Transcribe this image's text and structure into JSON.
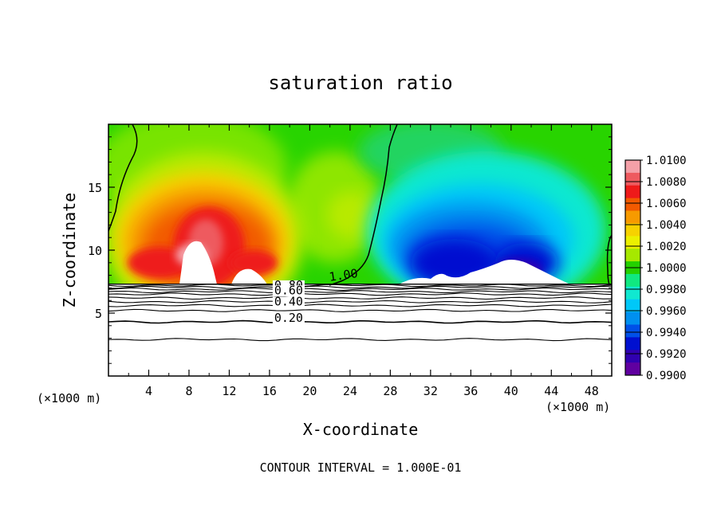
{
  "chart_data": {
    "type": "heatmap",
    "title": "saturation ratio",
    "xlabel": "X-coordinate",
    "ylabel": "Z-coordinate",
    "x_unit_left": "(×1000 m)",
    "x_unit_right": "(×1000 m)",
    "footer": "CONTOUR INTERVAL = 1.000E-01",
    "xlim": [
      0,
      50
    ],
    "ylim": [
      0,
      20
    ],
    "x_ticks": [
      4,
      8,
      12,
      16,
      20,
      24,
      28,
      32,
      36,
      40,
      44,
      48
    ],
    "x_tick_labels": [
      "4",
      "8",
      "12",
      "16",
      "20",
      "24",
      "28",
      "32",
      "36",
      "40",
      "44",
      "48"
    ],
    "y_ticks": [
      5,
      10,
      15
    ],
    "y_tick_labels": [
      "5",
      "10",
      "15"
    ],
    "colorbar": {
      "levels": [
        "1.0100",
        "1.0080",
        "1.0060",
        "1.0040",
        "1.0020",
        "1.0000",
        "0.9980",
        "0.9960",
        "0.9940",
        "0.9920",
        "0.9900"
      ],
      "colors": [
        "#f4a0a8",
        "#ee5a5f",
        "#ee1a1a",
        "#f25a00",
        "#f79a00",
        "#f7d200",
        "#ecf000",
        "#a6e800",
        "#24d000",
        "#10e880",
        "#10e8d0",
        "#00c8f8",
        "#0090f0",
        "#0050e8",
        "#0010d0",
        "#3000b0",
        "#6000a0"
      ]
    },
    "contour_labels": [
      {
        "text": "1.00",
        "x": 23.4,
        "z": 7.7
      },
      {
        "text": "0.80",
        "x": 17.9,
        "z": 6.9
      },
      {
        "text": "0.60",
        "x": 17.9,
        "z": 6.5
      },
      {
        "text": "0.40",
        "x": 17.9,
        "z": 5.6
      },
      {
        "text": "0.20",
        "x": 17.9,
        "z": 4.3
      }
    ],
    "lower_contours_z": [
      7.2,
      7.05,
      6.9,
      6.7,
      6.5,
      6.2,
      5.9,
      5.6,
      5.2,
      4.3,
      2.9
    ],
    "saturation_boundary_z": 7.3
  }
}
